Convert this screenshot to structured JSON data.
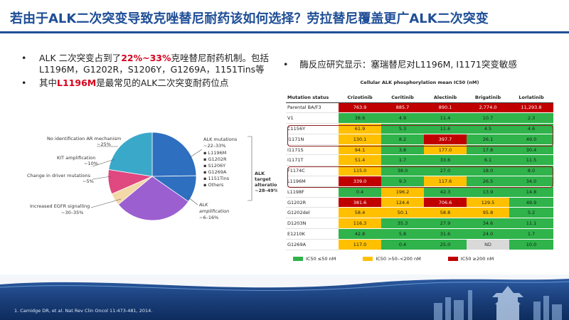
{
  "title": "若由于ALK二次突变导致克唑替尼耐药该如何选择？劳拉替尼覆盖更广ALK二次突变",
  "left_bullets": {
    "b1_part1": "ALK 二次突变占到了",
    "b1_highlight": "22%~33%",
    "b1_part2": "克唑替尼耐药机制。包括L1196M，G1202R，S1206Y，G1269A，1151Tins等",
    "b2_part1": "其中",
    "b2_highlight": "L1196M",
    "b2_part2": "是最常见的ALK二次突变耐药位点"
  },
  "right_heading": "酶反应研究显示：塞瑞替尼对L1196M, I1171突变敏感",
  "pie": {
    "slices": [
      {
        "label": "ALK mutations",
        "value": 27.5,
        "color": "#2e6fbf"
      },
      {
        "label": "ALK amplification",
        "value": 11,
        "color": "#2e6fbf"
      },
      {
        "label": "Increased EGFR signalling",
        "value": 32.5,
        "color": "#9c5fd0"
      },
      {
        "label": "Change in driver mutations",
        "value": 5,
        "color": "#f3d8a8"
      },
      {
        "label": "KIT amplification",
        "value": 10,
        "color": "#e04880"
      },
      {
        "label": "No identification AR mechanism",
        "value": 25,
        "color": "#3aa9c9"
      }
    ],
    "labels": {
      "no_id_1": "No identification AR mechanism",
      "no_id_2": "~25%",
      "kit_1": "KIT amplification",
      "kit_2": "~10%",
      "driver_1": "Change in driver mutations",
      "driver_2": "~5%",
      "egfr_1": "Increased EGFR signalling",
      "egfr_2": "~30–35%",
      "alkmut_1": "ALK mutations",
      "alkmut_2": "~22–33%",
      "m1": "▪ L1196M",
      "m2": "▪ G1202R",
      "m3": "▪ S1206Y",
      "m4": "▪ G1269A",
      "m5": "▪ 1151Tins",
      "m6": "▪ Others",
      "amp_1": "ALK",
      "amp_2": "amplification",
      "amp_3": "~6–16%",
      "target_1": "ALK",
      "target_2": "target",
      "target_3": "alteration",
      "target_4": "~28–49%"
    }
  },
  "table": {
    "title": "Cellular ALK phosphorylation mean IC50 (nM)",
    "headers": [
      "Mutation status",
      "Crizotinib",
      "Ceritinib",
      "Alectinib",
      "Brigatinib",
      "Lorlatinib"
    ],
    "rows": [
      {
        "name": "Parental BA/F3",
        "cells": [
          [
            "763.9",
            "red"
          ],
          [
            "885.7",
            "red"
          ],
          [
            "890.1",
            "red"
          ],
          [
            "2,774.0",
            "red"
          ],
          [
            "11,293.8",
            "red"
          ]
        ]
      },
      {
        "name": "V1",
        "cells": [
          [
            "38.6",
            "green"
          ],
          [
            "4.9",
            "green"
          ],
          [
            "11.4",
            "green"
          ],
          [
            "10.7",
            "green"
          ],
          [
            "2.3",
            "green"
          ]
        ]
      },
      {
        "name": "C1156Y",
        "cells": [
          [
            "61.9",
            "amber"
          ],
          [
            "5.3",
            "green"
          ],
          [
            "11.6",
            "green"
          ],
          [
            "4.5",
            "green"
          ],
          [
            "4.6",
            "green"
          ]
        ]
      },
      {
        "name": "I1171N",
        "cells": [
          [
            "130.1",
            "amber"
          ],
          [
            "8.2",
            "green"
          ],
          [
            "397.7",
            "red"
          ],
          [
            "26.1",
            "green"
          ],
          [
            "49.0",
            "green"
          ]
        ]
      },
      {
        "name": "I1171S",
        "cells": [
          [
            "94.1",
            "amber"
          ],
          [
            "3.8",
            "green"
          ],
          [
            "177.0",
            "amber"
          ],
          [
            "17.8",
            "green"
          ],
          [
            "30.4",
            "green"
          ]
        ]
      },
      {
        "name": "I1171T",
        "cells": [
          [
            "51.4",
            "amber"
          ],
          [
            "1.7",
            "green"
          ],
          [
            "33.6",
            "green"
          ],
          [
            "6.1",
            "green"
          ],
          [
            "11.5",
            "green"
          ]
        ]
      },
      {
        "name": "F1174C",
        "cells": [
          [
            "115.0",
            "amber"
          ],
          [
            "38.0",
            "green"
          ],
          [
            "27.0",
            "green"
          ],
          [
            "18.0",
            "green"
          ],
          [
            "8.0",
            "green"
          ]
        ]
      },
      {
        "name": "L1196M",
        "cells": [
          [
            "339.0",
            "red"
          ],
          [
            "9.3",
            "green"
          ],
          [
            "117.6",
            "amber"
          ],
          [
            "26.5",
            "green"
          ],
          [
            "34.0",
            "green"
          ]
        ]
      },
      {
        "name": "L1198F",
        "cells": [
          [
            "0.4",
            "green"
          ],
          [
            "196.2",
            "amber"
          ],
          [
            "42.3",
            "green"
          ],
          [
            "13.9",
            "green"
          ],
          [
            "14.8",
            "green"
          ]
        ]
      },
      {
        "name": "G1202R",
        "cells": [
          [
            "381.6",
            "red"
          ],
          [
            "124.4",
            "amber"
          ],
          [
            "706.6",
            "red"
          ],
          [
            "129.5",
            "amber"
          ],
          [
            "49.9",
            "green"
          ]
        ]
      },
      {
        "name": "G1202del",
        "cells": [
          [
            "58.4",
            "amber"
          ],
          [
            "50.1",
            "amber"
          ],
          [
            "58.8",
            "amber"
          ],
          [
            "95.8",
            "amber"
          ],
          [
            "5.2",
            "green"
          ]
        ]
      },
      {
        "name": "D1203N",
        "cells": [
          [
            "116.3",
            "amber"
          ],
          [
            "35.3",
            "green"
          ],
          [
            "27.9",
            "green"
          ],
          [
            "34.6",
            "green"
          ],
          [
            "11.1",
            "green"
          ]
        ]
      },
      {
        "name": "E1210K",
        "cells": [
          [
            "42.8",
            "green"
          ],
          [
            "5.8",
            "green"
          ],
          [
            "31.6",
            "green"
          ],
          [
            "24.0",
            "green"
          ],
          [
            "1.7",
            "green"
          ]
        ]
      },
      {
        "name": "G1269A",
        "cells": [
          [
            "117.0",
            "amber"
          ],
          [
            "0.4",
            "green"
          ],
          [
            "25.0",
            "green"
          ],
          [
            "ND",
            "grey"
          ],
          [
            "10.0",
            "green"
          ]
        ]
      }
    ],
    "legend": [
      {
        "label": "IC50 ≤50 nM",
        "color": "#2fb34a"
      },
      {
        "label": "IC50 >50–<200 nM",
        "color": "#ffc000"
      },
      {
        "label": "IC50 ≥200 nM",
        "color": "#c00000"
      }
    ]
  },
  "citation": "1. Camidge DR, et al. Nat Rev Clin Oncol 11:473-481, 2014."
}
